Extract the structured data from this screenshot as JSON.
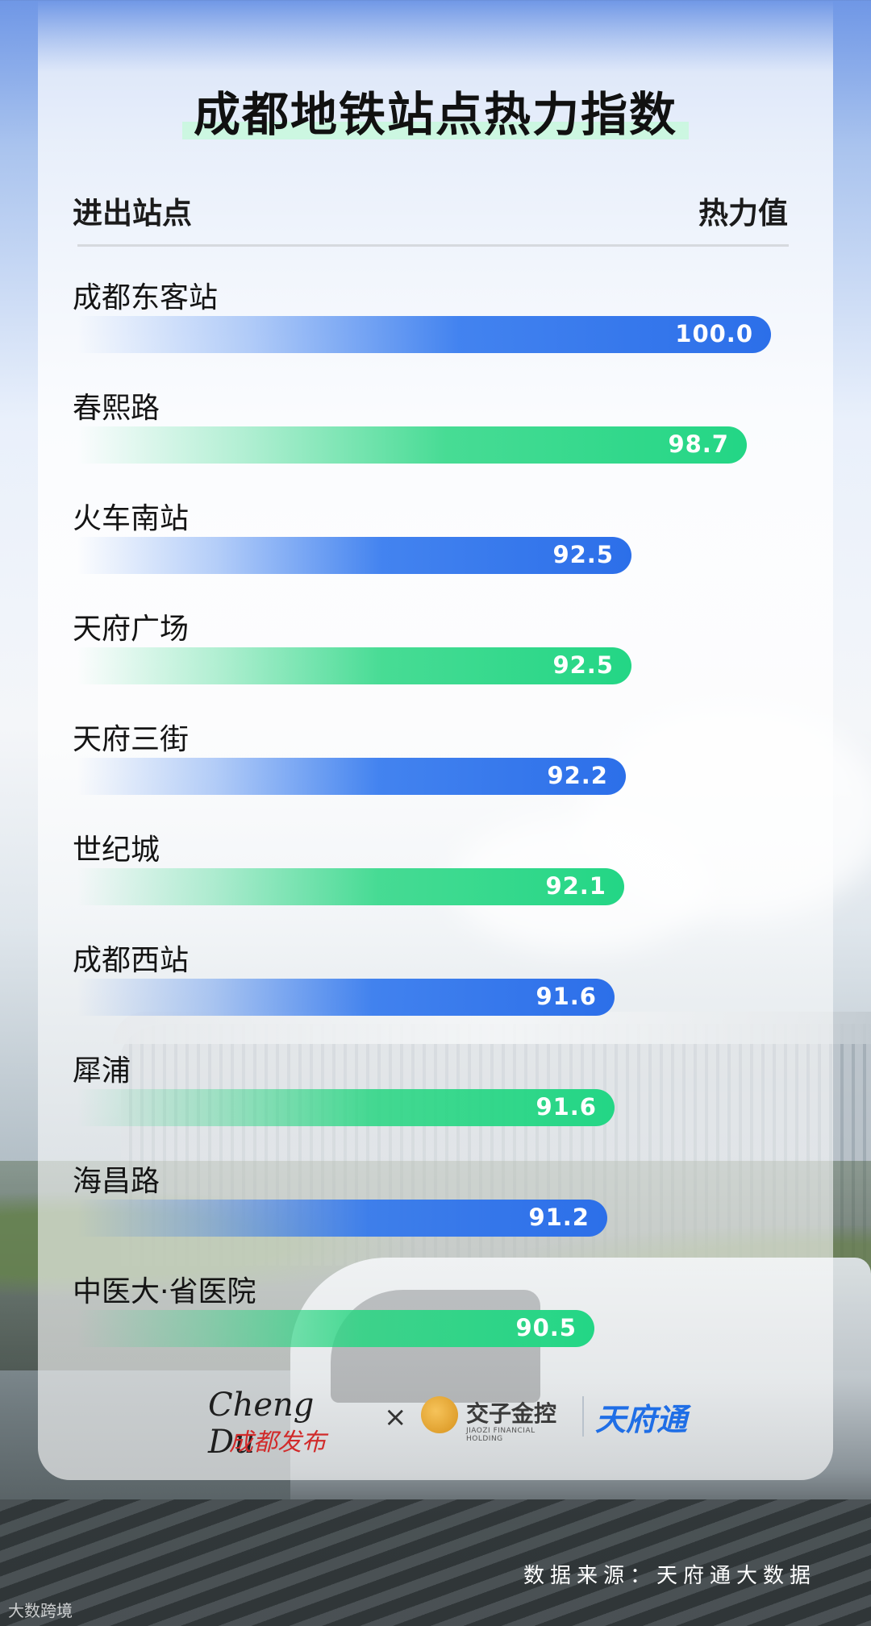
{
  "header": {
    "title": "成都地铁站点热力指数",
    "col_left": "进出站点",
    "col_right": "热力值"
  },
  "colors": {
    "accent_green": "#3fe08f",
    "bar_blue": "#2c6fe9",
    "bar_green": "#23d685"
  },
  "chart_data": {
    "type": "bar",
    "orientation": "horizontal",
    "title": "成都地铁站点热力指数",
    "xlabel": "热力值",
    "ylabel": "进出站点",
    "categories": [
      "成都东客站",
      "春熙路",
      "火车南站",
      "天府广场",
      "天府三街",
      "世纪城",
      "成都西站",
      "犀浦",
      "海昌路",
      "中医大·省医院"
    ],
    "values": [
      100.0,
      98.7,
      92.5,
      92.5,
      92.2,
      92.1,
      91.6,
      91.6,
      91.2,
      90.5
    ],
    "value_labels": [
      "100.0",
      "98.7",
      "92.5",
      "92.5",
      "92.2",
      "92.1",
      "91.6",
      "91.6",
      "91.2",
      "90.5"
    ],
    "bar_colors": [
      "blue",
      "green",
      "blue",
      "green",
      "blue",
      "green",
      "blue",
      "green",
      "blue",
      "green"
    ],
    "grid": false,
    "legend": "none"
  },
  "footer": {
    "logo_chengdu_top": "Cheng Du",
    "logo_chengdu_bottom": "成都发布",
    "times_sign": "×",
    "logo_jiaozi_cn": "交子金控",
    "logo_jiaozi_en": "JIAOZI FINANCIAL HOLDING",
    "logo_tianfutong": "天府通",
    "source": "数据来源：天府通大数据"
  },
  "watermark": "大数跨境"
}
